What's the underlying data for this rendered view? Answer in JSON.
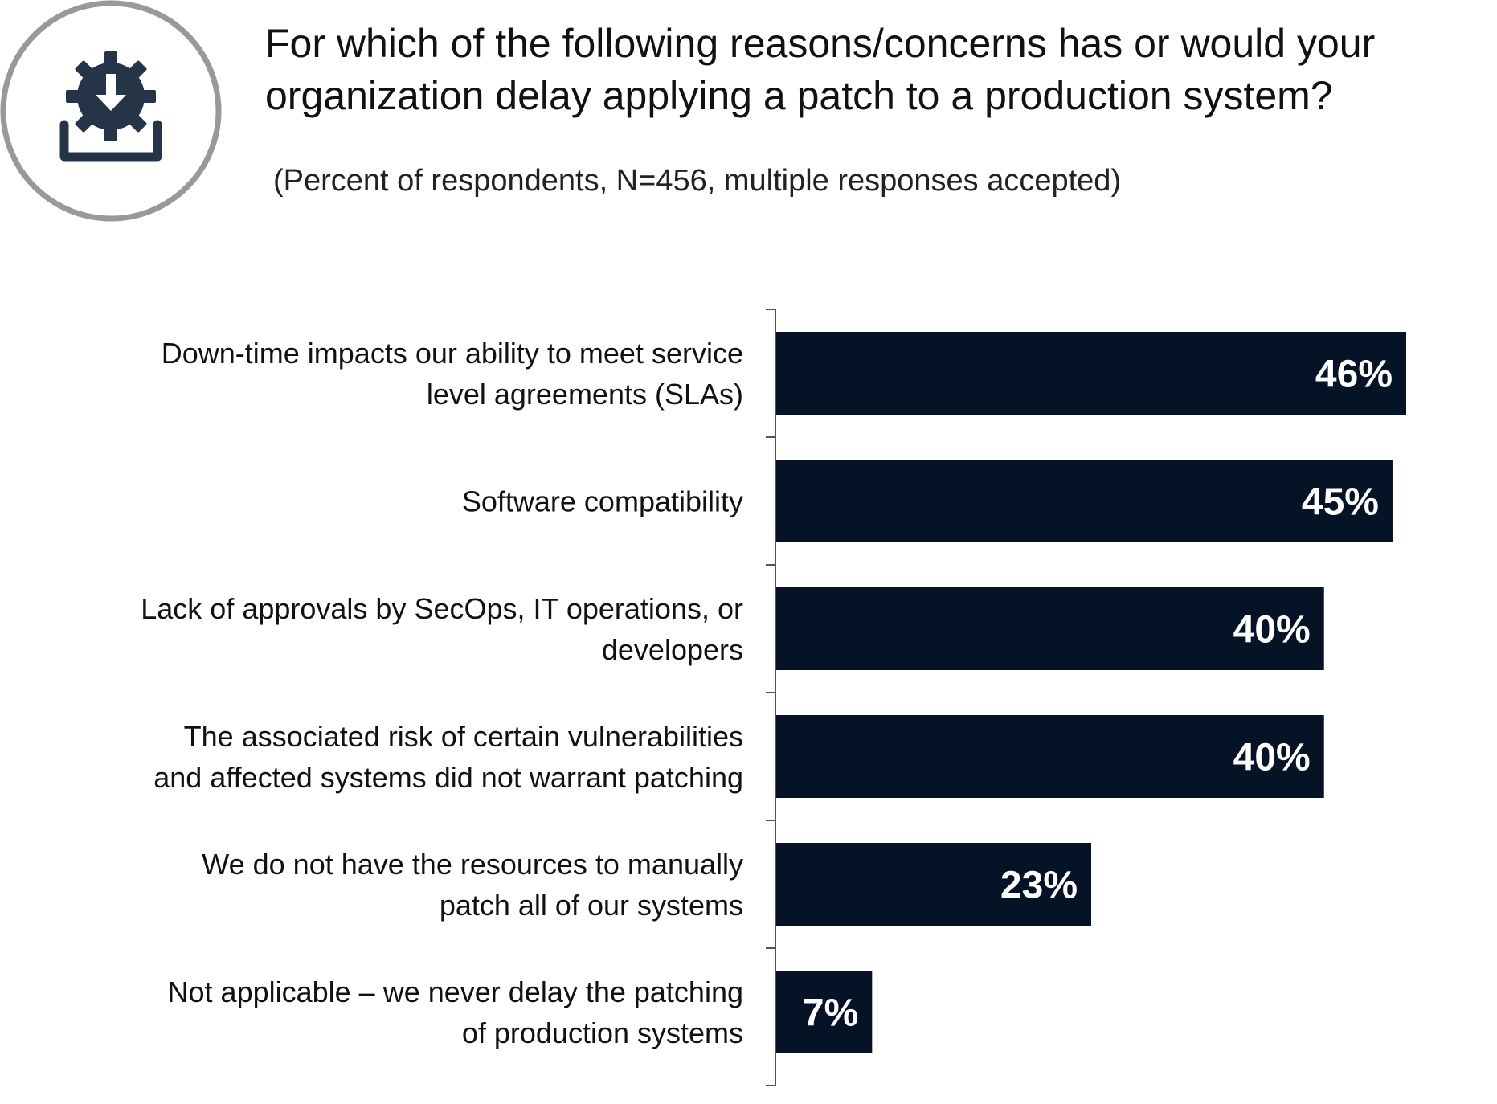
{
  "header": {
    "title": "For which of the following reasons/concerns has or would your organization delay applying a patch to a production system?",
    "subtitle": "(Percent of respondents, N=456, multiple responses accepted)",
    "icon": "gear-download-icon"
  },
  "colors": {
    "bar": "#061226",
    "icon_ring": "#999999",
    "icon_fill": "#263447",
    "value_label": "#ffffff"
  },
  "chart_data": {
    "type": "bar",
    "orientation": "horizontal",
    "title": "For which of the following reasons/concerns has or would your organization delay applying a patch to a production system?",
    "subtitle": "(Percent of respondents, N=456, multiple responses accepted)",
    "xlabel": "",
    "ylabel": "",
    "xlim": [
      0,
      50
    ],
    "grid": false,
    "legend": "none",
    "unit": "%",
    "categories": [
      [
        "Down-time impacts our ability to meet service",
        "level agreements (SLAs)"
      ],
      [
        "Software compatibility"
      ],
      [
        "Lack of approvals by SecOps, IT operations, or",
        "developers"
      ],
      [
        "The associated risk of certain vulnerabilities",
        "and affected systems did not warrant patching"
      ],
      [
        "We do not have the resources to manually",
        "patch all of our systems"
      ],
      [
        "Not applicable – we never delay the patching",
        "of production systems"
      ]
    ],
    "values": [
      46,
      45,
      40,
      40,
      23,
      7
    ],
    "value_labels": [
      "46%",
      "45%",
      "40%",
      "40%",
      "23%",
      "7%"
    ]
  }
}
